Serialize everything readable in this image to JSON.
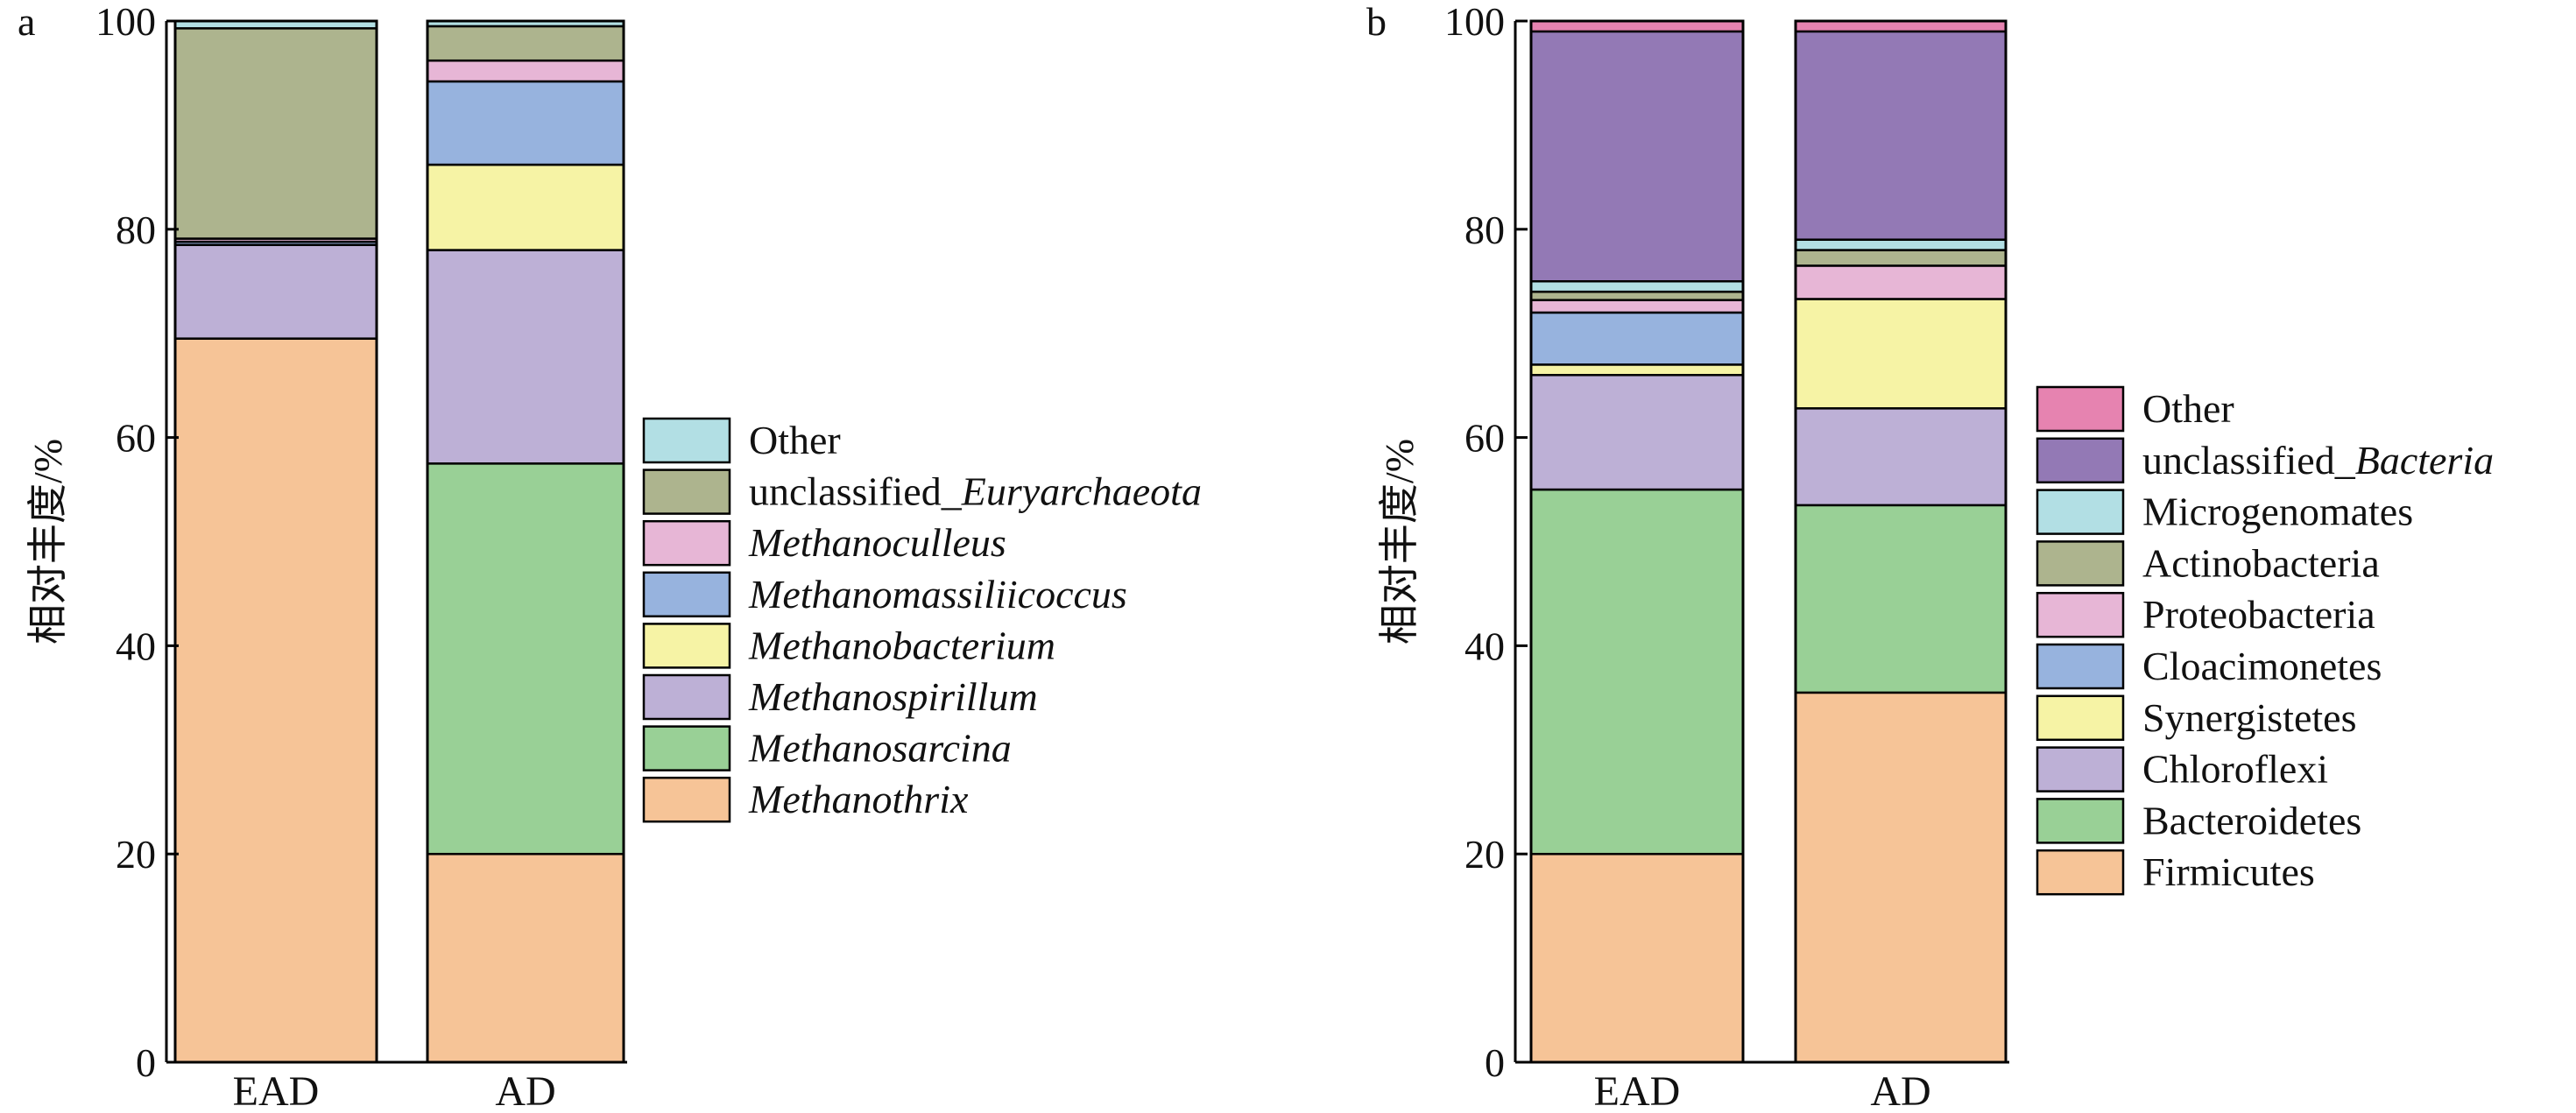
{
  "chart_data": [
    {
      "panel": "a",
      "type": "bar",
      "stacked": true,
      "ylabel": "相对丰度/%",
      "ylim": [
        0,
        100
      ],
      "yticks": [
        "0",
        "20",
        "40",
        "60",
        "80",
        "100"
      ],
      "categories": [
        "EAD",
        "AD"
      ],
      "series": [
        {
          "name": "Methanothrix",
          "italic": true,
          "color": "#f6c497",
          "values": [
            69.5,
            20.0
          ]
        },
        {
          "name": "Methanosarcina",
          "italic": true,
          "color": "#99d096",
          "values": [
            0.0,
            37.5
          ]
        },
        {
          "name": "Methanospirillum",
          "italic": true,
          "color": "#bdb0d6",
          "values": [
            9.0,
            20.5
          ]
        },
        {
          "name": "Methanobacterium",
          "italic": true,
          "color": "#f6f3a5",
          "values": [
            0.0,
            8.2
          ]
        },
        {
          "name": "Methanomassiliicoccus",
          "italic": true,
          "color": "#97b3de",
          "values": [
            0.3,
            8.0
          ]
        },
        {
          "name": "Methanoculleus",
          "italic": true,
          "color": "#e7b6d6",
          "values": [
            0.3,
            2.0
          ]
        },
        {
          "name": "unclassified_Euryarchaeota",
          "prefix": "unclassified_",
          "italic_part": "Euryarchaeota",
          "color": "#adb48e",
          "values": [
            20.2,
            3.3
          ]
        },
        {
          "name": "Other",
          "italic": false,
          "color": "#b2dfe4",
          "values": [
            0.7,
            0.5
          ]
        }
      ]
    },
    {
      "panel": "b",
      "type": "bar",
      "stacked": true,
      "ylabel": "相对丰度/%",
      "ylim": [
        0,
        100
      ],
      "yticks": [
        "0",
        "20",
        "40",
        "60",
        "80",
        "100"
      ],
      "categories": [
        "EAD",
        "AD"
      ],
      "series": [
        {
          "name": "Firmicutes",
          "italic": false,
          "color": "#f6c497",
          "values": [
            20.0,
            35.5
          ]
        },
        {
          "name": "Bacteroidetes",
          "italic": false,
          "color": "#99d096",
          "values": [
            35.0,
            18.0
          ]
        },
        {
          "name": "Chloroflexi",
          "italic": false,
          "color": "#bdb0d6",
          "values": [
            11.0,
            9.3
          ]
        },
        {
          "name": "Synergistetes",
          "italic": false,
          "color": "#f6f3a5",
          "values": [
            1.0,
            10.5
          ]
        },
        {
          "name": "Cloacimonetes",
          "italic": false,
          "color": "#97b3de",
          "values": [
            5.0,
            0.0
          ]
        },
        {
          "name": "Proteobacteria",
          "italic": false,
          "color": "#e7b6d6",
          "values": [
            1.2,
            3.2
          ]
        },
        {
          "name": "Actinobacteria",
          "italic": false,
          "color": "#adb48e",
          "values": [
            0.8,
            1.5
          ]
        },
        {
          "name": "Microgenomates",
          "italic": false,
          "color": "#b2dfe4",
          "values": [
            1.0,
            1.0
          ]
        },
        {
          "name": "unclassified_Bacteria",
          "prefix": "unclassified_",
          "italic_part": "Bacteria",
          "color": "#9379b5",
          "values": [
            24.0,
            20.0
          ]
        },
        {
          "name": "Other",
          "italic": false,
          "color": "#e683b0",
          "values": [
            1.0,
            1.0
          ]
        }
      ]
    }
  ]
}
